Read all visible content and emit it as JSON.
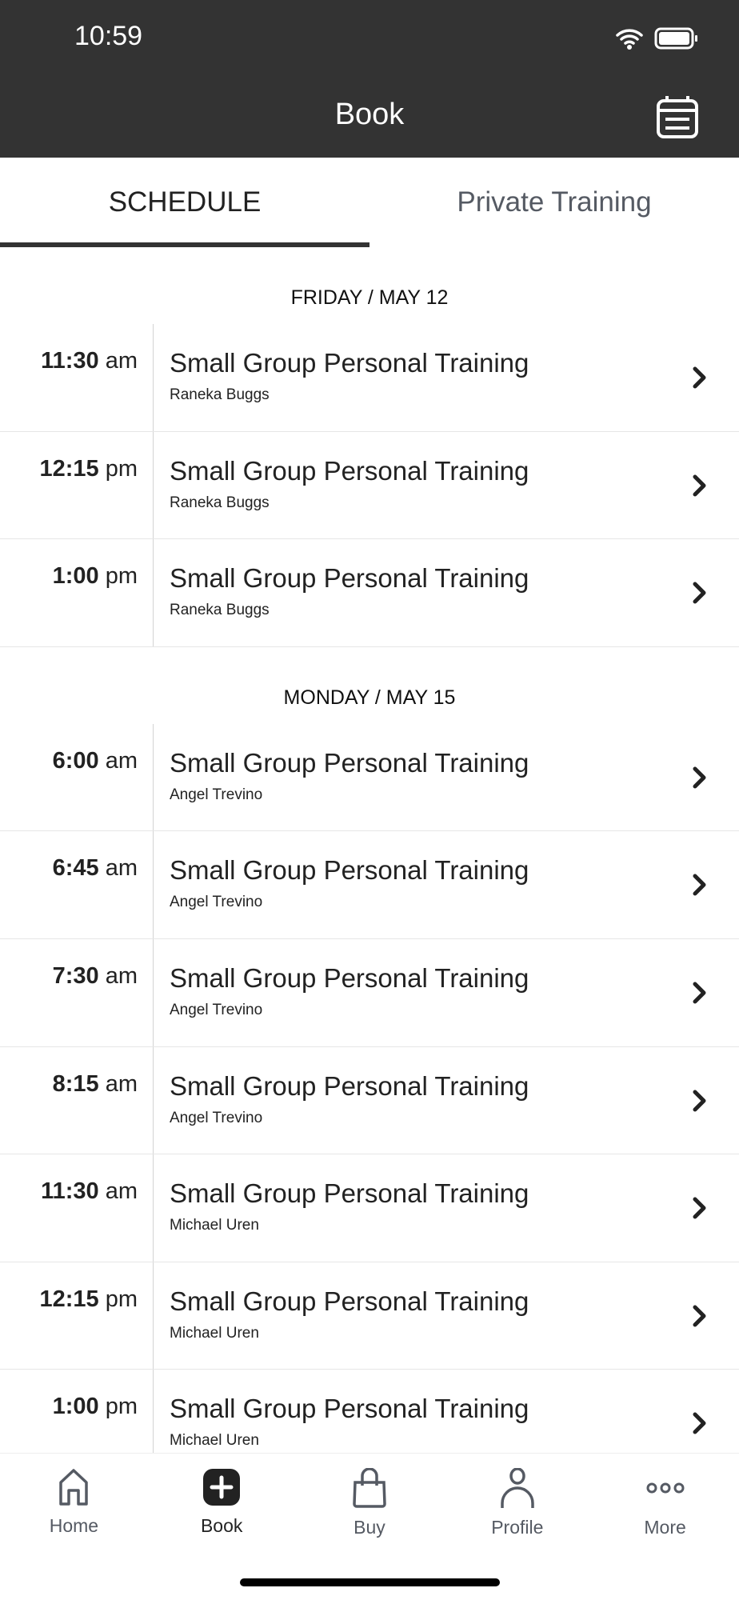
{
  "status": {
    "time": "10:59"
  },
  "header": {
    "title": "Book"
  },
  "tabs": [
    {
      "label": "SCHEDULE",
      "active": true
    },
    {
      "label": "Private Training",
      "active": false
    }
  ],
  "sections": [
    {
      "date": "FRIDAY / MAY 12",
      "rows": [
        {
          "time": "11:30",
          "ampm": "am",
          "name": "Small Group Personal Training",
          "instructor": "Raneka Buggs"
        },
        {
          "time": "12:15",
          "ampm": "pm",
          "name": "Small Group Personal Training",
          "instructor": "Raneka Buggs"
        },
        {
          "time": "1:00",
          "ampm": "pm",
          "name": "Small Group Personal Training",
          "instructor": "Raneka Buggs"
        }
      ]
    },
    {
      "date": "MONDAY / MAY 15",
      "rows": [
        {
          "time": "6:00",
          "ampm": "am",
          "name": "Small Group Personal Training",
          "instructor": "Angel Trevino"
        },
        {
          "time": "6:45",
          "ampm": "am",
          "name": "Small Group Personal Training",
          "instructor": "Angel Trevino"
        },
        {
          "time": "7:30",
          "ampm": "am",
          "name": "Small Group Personal Training",
          "instructor": "Angel Trevino"
        },
        {
          "time": "8:15",
          "ampm": "am",
          "name": "Small Group Personal Training",
          "instructor": "Angel Trevino"
        },
        {
          "time": "11:30",
          "ampm": "am",
          "name": "Small Group Personal Training",
          "instructor": "Michael Uren"
        },
        {
          "time": "12:15",
          "ampm": "pm",
          "name": "Small Group Personal Training",
          "instructor": "Michael Uren"
        },
        {
          "time": "1:00",
          "ampm": "pm",
          "name": "Small Group Personal Training",
          "instructor": "Michael Uren"
        }
      ]
    }
  ],
  "nav": [
    {
      "label": "Home",
      "icon": "home-icon"
    },
    {
      "label": "Book",
      "icon": "plus-icon",
      "active": true
    },
    {
      "label": "Buy",
      "icon": "bag-icon"
    },
    {
      "label": "Profile",
      "icon": "person-icon"
    },
    {
      "label": "More",
      "icon": "more-icon"
    }
  ],
  "colors": {
    "header_bg": "#333333",
    "active": "#222222",
    "inactive": "#555a63"
  }
}
